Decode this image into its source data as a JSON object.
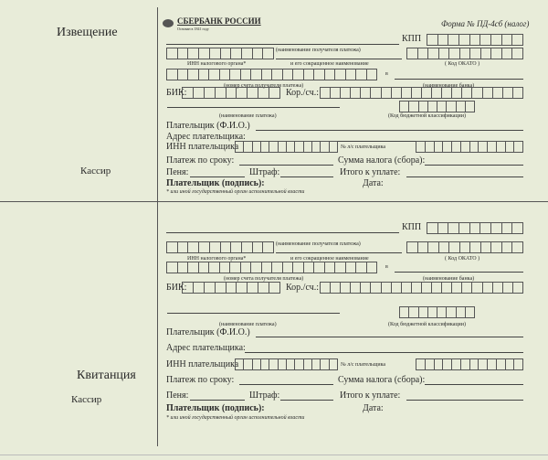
{
  "left": {
    "notice_title": "Извещение",
    "cashier_top": "Кассир",
    "receipt_title": "Квитанция",
    "cashier_bottom": "Кассир"
  },
  "header": {
    "bank_name": "СБЕРБАНК РОССИИ",
    "bank_tagline": "Основан в 1841 году",
    "form_label": "Форма № ПД-4сб (налог)"
  },
  "fields": {
    "kpp": "КПП",
    "recipient_name": "(наименование получателя платежа)",
    "inn_tax": "ИНН налогового органа*",
    "short_name": "и его сокращенное наименование",
    "okato": "( Код ОКАТО )",
    "v": "в",
    "account": "(номер счета получателя платежа)",
    "bank_name": "(наименование банка)",
    "bik": "БИК:",
    "kor": "Кор./сч.:",
    "payment_name": "(наименование платежа)",
    "kbk": "(Код бюджетной классификации)",
    "payer": "Плательщик (Ф.И.О.)",
    "address": "Адрес плательщика:",
    "payer_inn": "ИНН плательщика",
    "payer_ls": "№ л/с плательщика",
    "term": "Платеж по сроку:",
    "tax_sum": "Сумма налога (сбора):",
    "penalty": "Пеня:",
    "fine": "Штраф:",
    "total": "Итого к уплате:",
    "signature": "Плательщик (подпись):",
    "date": "Дата:",
    "footnote": "* или иной государственный орган исполнительной власти"
  }
}
